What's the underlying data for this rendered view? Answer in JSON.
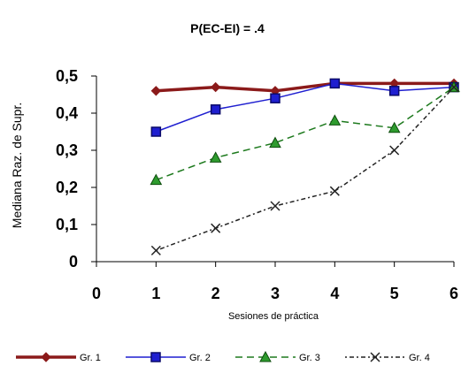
{
  "chart_data": {
    "type": "line",
    "title": "P(EC-EI) = .4",
    "xlabel": "Sesiones de práctica",
    "ylabel": "Mediana Raz. de Supr.",
    "x": [
      1,
      2,
      3,
      4,
      5,
      6
    ],
    "xlim": [
      0,
      6
    ],
    "ylim": [
      0,
      0.5
    ],
    "x_ticks": [
      "0",
      "1",
      "2",
      "3",
      "4",
      "5",
      "6"
    ],
    "y_ticks": [
      "0",
      "0,1",
      "0,2",
      "0,3",
      "0,4",
      "0,5"
    ],
    "grid": false,
    "legend_position": "bottom",
    "series": [
      {
        "name": "Gr. 1",
        "values": [
          0.46,
          0.47,
          0.46,
          0.48,
          0.48,
          0.48
        ],
        "color": "#8B1A1A",
        "marker": "diamond",
        "dash": "solid"
      },
      {
        "name": "Gr. 2",
        "values": [
          0.35,
          0.41,
          0.44,
          0.48,
          0.46,
          0.47
        ],
        "color": "#1F1FD0",
        "marker": "square",
        "dash": "solid"
      },
      {
        "name": "Gr. 3",
        "values": [
          0.22,
          0.28,
          0.32,
          0.38,
          0.36,
          0.47
        ],
        "color": "#1E7A1E",
        "marker": "triangle",
        "dash": "dashed"
      },
      {
        "name": "Gr. 4",
        "values": [
          0.03,
          0.09,
          0.15,
          0.19,
          0.3,
          0.47
        ],
        "color": "#222222",
        "marker": "x",
        "dash": "dotdash"
      }
    ]
  }
}
